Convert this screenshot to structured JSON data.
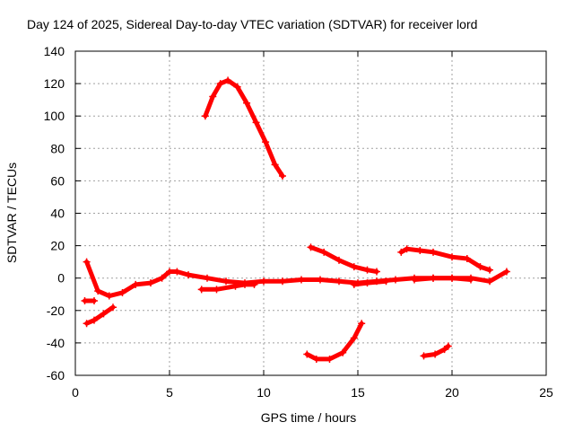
{
  "chart_data": {
    "type": "scatter",
    "title": "Day 124 of 2025, Sidereal Day-to-day VTEC variation (SDTVAR) for receiver lord",
    "xlabel": "GPS time / hours",
    "ylabel": "SDTVAR / TECUs",
    "xlim": [
      0,
      25
    ],
    "ylim": [
      -60,
      140
    ],
    "xticks": [
      0,
      5,
      10,
      15,
      20,
      25
    ],
    "yticks": [
      -60,
      -40,
      -20,
      0,
      20,
      40,
      60,
      80,
      100,
      120,
      140
    ],
    "grid": true,
    "marker": "+",
    "color": "#ff0000",
    "series": [
      {
        "name": "arc-main",
        "x": [
          0.6,
          1.2,
          1.8,
          2.5,
          3.2,
          4.0,
          4.6,
          5.0,
          5.4,
          6.0,
          7.0,
          8.0,
          9.0,
          10.0,
          11.0,
          12.0,
          13.0,
          14.0,
          15.0,
          16.0,
          17.0,
          18.0,
          19.0,
          20.0,
          21.0,
          22.0,
          22.9
        ],
        "y": [
          10,
          -8,
          -11,
          -9,
          -4,
          -3,
          0,
          4,
          4,
          2,
          0,
          -2,
          -3,
          -2,
          -2,
          -1,
          -1,
          -2,
          -3,
          -2,
          -1,
          0,
          0,
          0,
          0,
          -2,
          4
        ]
      },
      {
        "name": "arc-top",
        "x": [
          6.9,
          7.3,
          7.7,
          8.1,
          8.6,
          9.1,
          9.6,
          10.1,
          10.6,
          11.0
        ],
        "y": [
          100,
          112,
          120,
          122,
          118,
          108,
          96,
          84,
          70,
          63
        ]
      },
      {
        "name": "arc-low-left",
        "x": [
          0.6,
          1.0,
          1.5,
          2.0
        ],
        "y": [
          -28,
          -26,
          -22,
          -18
        ]
      },
      {
        "name": "arc-short-left",
        "x": [
          0.5,
          1.0
        ],
        "y": [
          -14,
          -14
        ]
      },
      {
        "name": "arc-mid-neg",
        "x": [
          6.7,
          7.5,
          8.5,
          9.0,
          9.5
        ],
        "y": [
          -7,
          -7,
          -5,
          -4,
          -4
        ]
      },
      {
        "name": "arc-mid-right-neg",
        "x": [
          14.8,
          15.5,
          16.5
        ],
        "y": [
          -4,
          -3,
          -2
        ]
      },
      {
        "name": "arc-right-flat",
        "x": [
          18.0,
          19.0,
          20.0,
          21.0
        ],
        "y": [
          -1,
          0,
          0,
          -1
        ]
      },
      {
        "name": "arc-mid-pos",
        "x": [
          12.5,
          13.2,
          14.0,
          14.8,
          15.5,
          16.0
        ],
        "y": [
          19,
          16,
          11,
          7,
          5,
          4
        ]
      },
      {
        "name": "arc-right-pos",
        "x": [
          17.3,
          17.6,
          18.3,
          19.0,
          20.0,
          20.8,
          21.5,
          22.0
        ],
        "y": [
          16,
          18,
          17,
          16,
          13,
          12,
          7,
          5
        ]
      },
      {
        "name": "arc-bottom",
        "x": [
          12.3,
          12.8,
          13.5,
          14.2,
          14.8,
          15.2
        ],
        "y": [
          -47,
          -50,
          -50,
          -46,
          -37,
          -28
        ]
      },
      {
        "name": "arc-bottom-right",
        "x": [
          18.5,
          19.1,
          19.6,
          19.8
        ],
        "y": [
          -48,
          -47,
          -44,
          -42
        ]
      }
    ]
  }
}
